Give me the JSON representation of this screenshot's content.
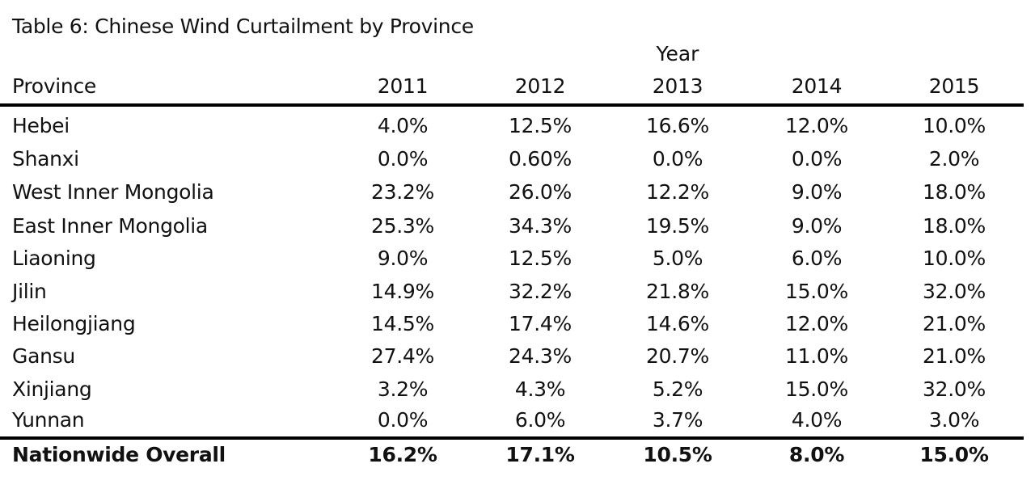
{
  "table": {
    "title": "Table 6: Chinese Wind Curtailment by Province",
    "group_header": "Year",
    "columns": [
      "Province",
      "2011",
      "2012",
      "2013",
      "2014",
      "2015"
    ],
    "rows": [
      [
        "Hebei",
        "4.0%",
        "12.5%",
        "16.6%",
        "12.0%",
        "10.0%"
      ],
      [
        "Shanxi",
        "0.0%",
        "0.60%",
        "0.0%",
        "0.0%",
        "2.0%"
      ],
      [
        "West Inner Mongolia",
        "23.2%",
        "26.0%",
        "12.2%",
        "9.0%",
        "18.0%"
      ],
      [
        "East Inner Mongolia",
        "25.3%",
        "34.3%",
        "19.5%",
        "9.0%",
        "18.0%"
      ],
      [
        "Liaoning",
        "9.0%",
        "12.5%",
        "5.0%",
        "6.0%",
        "10.0%"
      ],
      [
        "Jilin",
        "14.9%",
        "32.2%",
        "21.8%",
        "15.0%",
        "32.0%"
      ],
      [
        "Heilongjiang",
        "14.5%",
        "17.4%",
        "14.6%",
        "12.0%",
        "21.0%"
      ],
      [
        "Gansu",
        "27.4%",
        "24.3%",
        "20.7%",
        "11.0%",
        "21.0%"
      ],
      [
        "Xinjiang",
        "3.2%",
        "4.3%",
        "5.2%",
        "15.0%",
        "32.0%"
      ],
      [
        "Yunnan",
        "0.0%",
        "6.0%",
        "3.7%",
        "4.0%",
        "3.0%"
      ]
    ],
    "total_row": [
      "Nationwide Overall",
      "16.2%",
      "17.1%",
      "10.5%",
      "8.0%",
      "15.0%"
    ]
  }
}
